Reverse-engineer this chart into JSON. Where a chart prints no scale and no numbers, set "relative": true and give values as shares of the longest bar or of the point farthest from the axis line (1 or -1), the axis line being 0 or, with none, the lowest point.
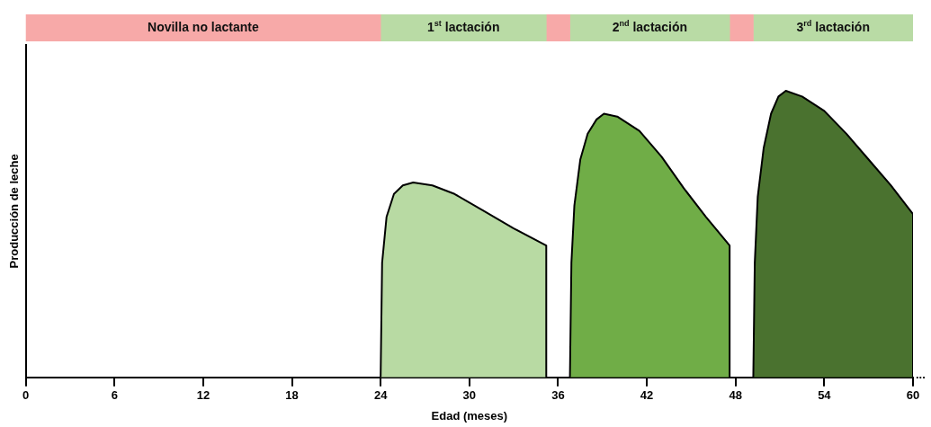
{
  "chart_data": [
    {
      "type": "bar",
      "orientation": "horizontal",
      "stacked": true,
      "categories": [
        null
      ],
      "xlim": [
        0,
        60
      ],
      "tick_labels": false,
      "legend": false,
      "series": [
        {
          "name": "Novilla no lactante",
          "color": "#f7a9a8",
          "values": [
            24
          ]
        },
        {
          "name": "1$^{st}$ lactación",
          "color": "#b9dba5",
          "values": [
            11.2
          ]
        },
        {
          "color": "#f7a9a8",
          "values": [
            1.6
          ]
        },
        {
          "name": "2$^{nd}$ lactación",
          "color": "#b9dba5",
          "values": [
            10.8
          ]
        },
        {
          "color": "#f7a9a8",
          "values": [
            1.6
          ]
        },
        {
          "name": "3$^{rd}$ lactación",
          "color": "#b9dba5",
          "values": [
            10.8
          ]
        }
      ]
    },
    {
      "type": "area",
      "relative": true,
      "xlabel": "Edad (meses)",
      "ylabel": "Producción de leche",
      "xlim": [
        0,
        60
      ],
      "xticks": [
        0,
        6,
        12,
        18,
        24,
        30,
        36,
        42,
        48,
        54,
        60
      ],
      "grid": false,
      "legend": false,
      "annotations": [
        "..."
      ],
      "series": [
        {
          "color": "#b8daa3",
          "x": [
            24,
            24.1,
            24.4,
            24.9,
            25.5,
            26.2,
            27.5,
            29,
            31,
            33,
            35.2,
            35.2
          ],
          "values": [
            0,
            0.4,
            0.56,
            0.64,
            0.67,
            0.68,
            0.67,
            0.64,
            0.58,
            0.52,
            0.46,
            0
          ]
        },
        {
          "color": "#70ad47",
          "x": [
            36.8,
            36.9,
            37.1,
            37.5,
            38,
            38.6,
            39.1,
            40,
            41.5,
            43,
            44.5,
            46,
            47.6,
            47.6
          ],
          "values": [
            0,
            0.4,
            0.6,
            0.76,
            0.85,
            0.9,
            0.92,
            0.91,
            0.86,
            0.77,
            0.66,
            0.56,
            0.46,
            0
          ]
        },
        {
          "color": "#4a722f",
          "x": [
            49.2,
            49.3,
            49.5,
            49.9,
            50.4,
            50.9,
            51.4,
            52.5,
            54,
            55.5,
            57,
            58.5,
            60,
            60
          ],
          "values": [
            0,
            0.4,
            0.63,
            0.8,
            0.92,
            0.98,
            1,
            0.98,
            0.93,
            0.85,
            0.76,
            0.67,
            0.57,
            0
          ]
        }
      ]
    }
  ]
}
